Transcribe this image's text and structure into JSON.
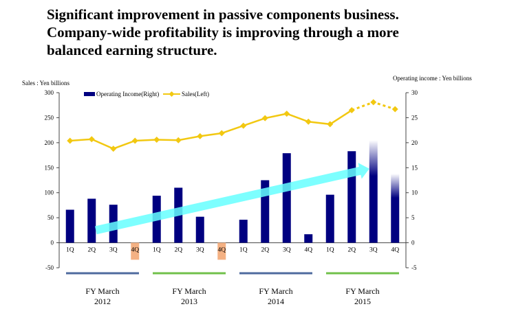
{
  "headline": {
    "line1": "Significant improvement in passive components business.",
    "line2": "Company-wide profitability is improving through a more",
    "line3": "balanced earning structure."
  },
  "left_axis_label": "Sales : Yen billions",
  "right_axis_label": "Operating income : Yen billions",
  "chart_data": {
    "type": "bar+line",
    "categories": [
      "1Q",
      "2Q",
      "3Q",
      "4Q",
      "1Q",
      "2Q",
      "3Q",
      "4Q",
      "1Q",
      "2Q",
      "3Q",
      "4Q",
      "1Q",
      "2Q",
      "3Q",
      "4Q"
    ],
    "series": [
      {
        "name": "Operating Income(Right)",
        "axis": "right",
        "type": "bar",
        "color": "#000080",
        "values": [
          6.6,
          8.8,
          7.6,
          -3.4,
          9.4,
          11.0,
          5.2,
          -3.4,
          4.6,
          12.5,
          17.9,
          1.7,
          9.6,
          18.3,
          20.5,
          13.8
        ],
        "negative_bar_color": "#F4B183",
        "forecast_from_index": 14
      },
      {
        "name": "Sales(Left)",
        "axis": "left",
        "type": "line",
        "color": "#F2C811",
        "values": [
          204,
          207,
          188,
          204,
          206,
          205,
          213,
          219,
          234,
          249,
          258,
          242,
          237,
          265,
          281,
          267
        ],
        "forecast_from_index": 13
      }
    ],
    "left_axis": {
      "min": -50,
      "max": 300,
      "ticks": [
        "-50",
        "0",
        "50",
        "100",
        "150",
        "200",
        "250",
        "300"
      ]
    },
    "right_axis": {
      "min": -5,
      "max": 30,
      "ticks": [
        "-5",
        "0",
        "5",
        "10",
        "15",
        "20",
        "25",
        "30"
      ]
    },
    "legend_position": "top-left",
    "groups": [
      {
        "line1": "FY March",
        "line2": "2012",
        "line_color": "#4E6A9E"
      },
      {
        "line1": "FY March",
        "line2": "2013",
        "line_color": "#70C04A"
      },
      {
        "line1": "FY March",
        "line2": "2014",
        "line_color": "#4E6A9E"
      },
      {
        "line1": "FY March",
        "line2": "2015",
        "line_color": "#70C04A"
      }
    ],
    "trend_arrow_color": "#66FFFF",
    "grid": false
  }
}
